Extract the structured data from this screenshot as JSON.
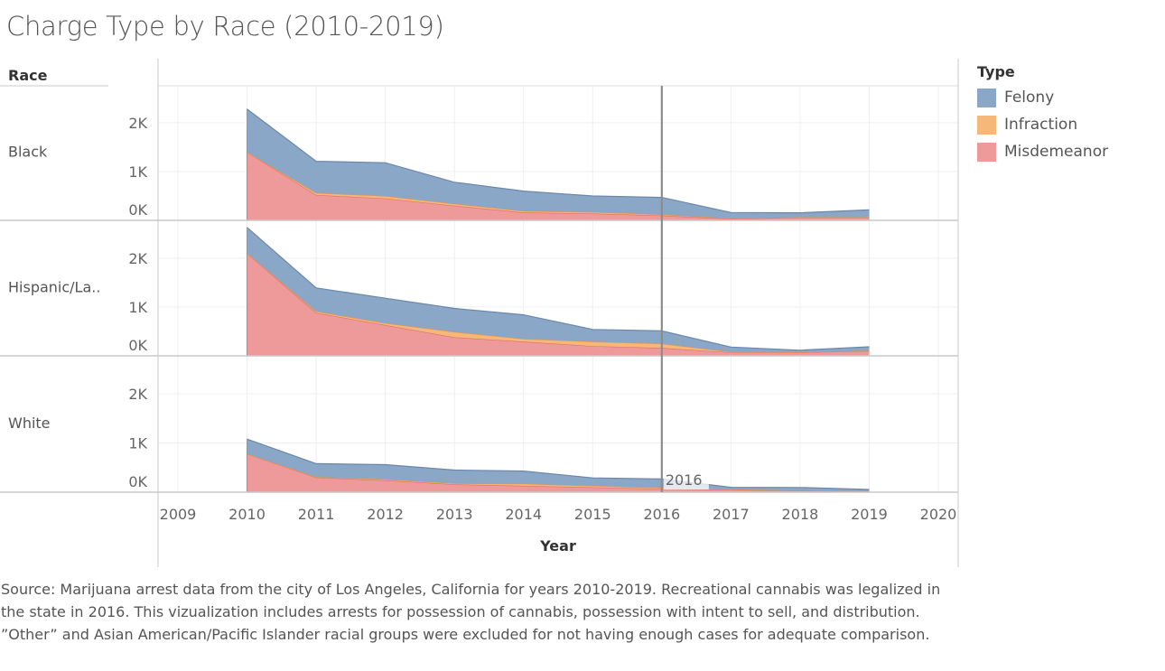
{
  "chart_data": {
    "type": "area",
    "title": "Charge Type by Race (2010-2019)",
    "row_header": "Race",
    "xlabel": "Year",
    "xlim": [
      2009,
      2020
    ],
    "x_ticks": [
      "2009",
      "2010",
      "2011",
      "2012",
      "2013",
      "2014",
      "2015",
      "2016",
      "2017",
      "2018",
      "2019",
      "2020"
    ],
    "ylim": [
      0,
      2700
    ],
    "y_ticks": [
      {
        "value": 0,
        "label": "0K"
      },
      {
        "value": 1000,
        "label": "1K"
      },
      {
        "value": 2000,
        "label": "2K"
      }
    ],
    "x": [
      2010,
      2011,
      2012,
      2013,
      2014,
      2015,
      2016,
      2017,
      2018,
      2019
    ],
    "legend_title": "Type",
    "legend_position": "right",
    "stack_order": [
      "Misdemeanor",
      "Infraction",
      "Felony"
    ],
    "series_colors": {
      "Felony": "#8aa7c7",
      "Infraction": "#f5b878",
      "Misdemeanor": "#ee9a9a"
    },
    "series_line_colors": {
      "Felony": "#6b88aa",
      "Infraction": "#e8944a",
      "Misdemeanor": "#dd6e74"
    },
    "legend": [
      "Felony",
      "Infraction",
      "Misdemeanor"
    ],
    "reference_line": {
      "x": 2016,
      "label": "2016"
    },
    "rows": [
      {
        "name": "Black",
        "series": [
          {
            "name": "Misdemeanor",
            "values": [
              1400,
              520,
              450,
              300,
              160,
              140,
              100,
              30,
              60,
              60
            ]
          },
          {
            "name": "Infraction",
            "values": [
              0,
              40,
              50,
              40,
              30,
              30,
              20,
              10,
              5,
              5
            ]
          },
          {
            "name": "Felony",
            "values": [
              880,
              650,
              680,
              440,
              410,
              330,
              350,
              120,
              90,
              150
            ]
          }
        ]
      },
      {
        "name": "Hispanic/La..",
        "series": [
          {
            "name": "Misdemeanor",
            "values": [
              2100,
              880,
              630,
              380,
              290,
              200,
              160,
              70,
              70,
              100
            ]
          },
          {
            "name": "Infraction",
            "values": [
              0,
              30,
              40,
              110,
              60,
              90,
              90,
              10,
              5,
              5
            ]
          },
          {
            "name": "Felony",
            "values": [
              530,
              480,
              510,
              480,
              490,
              250,
              260,
              100,
              40,
              80
            ]
          }
        ]
      },
      {
        "name": "White",
        "series": [
          {
            "name": "Misdemeanor",
            "values": [
              780,
              300,
              240,
              160,
              130,
              100,
              70,
              50,
              30,
              20
            ]
          },
          {
            "name": "Infraction",
            "values": [
              0,
              10,
              20,
              20,
              40,
              30,
              20,
              10,
              5,
              5
            ]
          },
          {
            "name": "Felony",
            "values": [
              300,
              270,
              300,
              270,
              260,
              160,
              180,
              40,
              60,
              30
            ]
          }
        ]
      }
    ],
    "grid": true
  },
  "source_note": "Source: Marijuana arrest data from the city of Los Angeles, California for years 2010-2019. Recreational cannabis was legalized in the state in 2016. This vizualization includes arrests for possession of cannabis, possession with intent to sell, and distribution. ”Other” and Asian American/Pacific Islander racial groups were excluded for not having enough cases for adequate comparison."
}
